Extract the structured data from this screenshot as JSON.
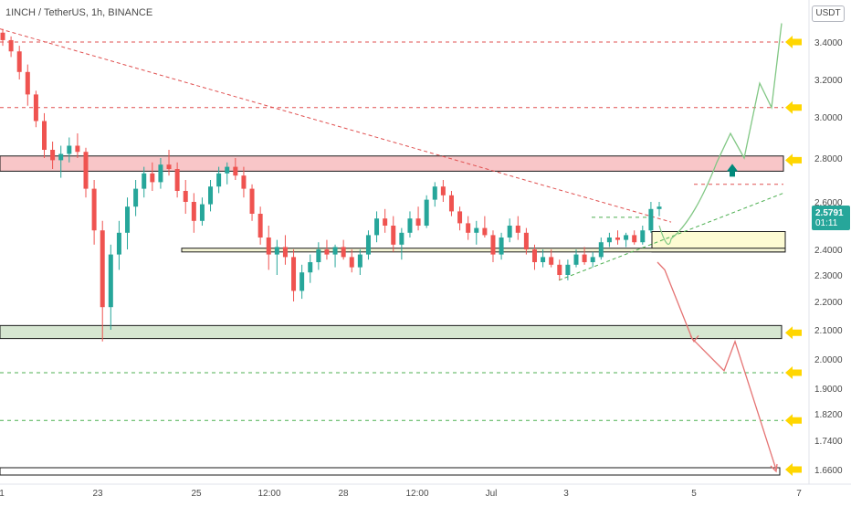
{
  "chart_data": {
    "type": "candlestick",
    "title": "1INCH / TetherUS, 1h, BINANCE",
    "unit_badge": "USDT",
    "current_price": "2.5791",
    "countdown": "01:11",
    "y_ticks": [
      "3.4000",
      "3.2000",
      "3.0000",
      "2.8000",
      "2.6000",
      "2.4000",
      "2.3000",
      "2.2000",
      "2.1000",
      "2.0000",
      "1.9000",
      "1.8200",
      "1.7400",
      "1.6600"
    ],
    "x_ticks": [
      "1",
      "23",
      "25",
      "12:00",
      "28",
      "12:00",
      "Jul",
      "3",
      "5",
      "7"
    ],
    "ohlc": [
      [
        3.45,
        3.47,
        3.38,
        3.41
      ],
      [
        3.41,
        3.43,
        3.32,
        3.35
      ],
      [
        3.35,
        3.38,
        3.2,
        3.24
      ],
      [
        3.24,
        3.28,
        3.06,
        3.12
      ],
      [
        3.12,
        3.14,
        2.95,
        2.98
      ],
      [
        2.98,
        3.02,
        2.8,
        2.84
      ],
      [
        2.84,
        2.88,
        2.75,
        2.79
      ],
      [
        2.79,
        2.86,
        2.71,
        2.82
      ],
      [
        2.82,
        2.9,
        2.78,
        2.86
      ],
      [
        2.86,
        2.92,
        2.8,
        2.83
      ],
      [
        2.83,
        2.85,
        2.62,
        2.66
      ],
      [
        2.66,
        2.7,
        2.42,
        2.48
      ],
      [
        2.48,
        2.52,
        2.06,
        2.18
      ],
      [
        2.18,
        2.42,
        2.1,
        2.38
      ],
      [
        2.38,
        2.52,
        2.32,
        2.47
      ],
      [
        2.47,
        2.62,
        2.4,
        2.58
      ],
      [
        2.58,
        2.7,
        2.54,
        2.66
      ],
      [
        2.66,
        2.76,
        2.62,
        2.73
      ],
      [
        2.73,
        2.78,
        2.65,
        2.69
      ],
      [
        2.69,
        2.8,
        2.66,
        2.77
      ],
      [
        2.77,
        2.84,
        2.72,
        2.75
      ],
      [
        2.75,
        2.78,
        2.62,
        2.65
      ],
      [
        2.65,
        2.7,
        2.55,
        2.6
      ],
      [
        2.6,
        2.64,
        2.47,
        2.52
      ],
      [
        2.52,
        2.62,
        2.5,
        2.59
      ],
      [
        2.59,
        2.7,
        2.56,
        2.67
      ],
      [
        2.67,
        2.76,
        2.64,
        2.73
      ],
      [
        2.73,
        2.78,
        2.68,
        2.76
      ],
      [
        2.76,
        2.8,
        2.7,
        2.72
      ],
      [
        2.72,
        2.76,
        2.62,
        2.66
      ],
      [
        2.66,
        2.68,
        2.52,
        2.55
      ],
      [
        2.55,
        2.58,
        2.42,
        2.45
      ],
      [
        2.45,
        2.5,
        2.32,
        2.38
      ],
      [
        2.38,
        2.44,
        2.3,
        2.41
      ],
      [
        2.41,
        2.46,
        2.34,
        2.37
      ],
      [
        2.37,
        2.4,
        2.2,
        2.24
      ],
      [
        2.24,
        2.34,
        2.21,
        2.31
      ],
      [
        2.31,
        2.38,
        2.27,
        2.35
      ],
      [
        2.35,
        2.43,
        2.32,
        2.4
      ],
      [
        2.4,
        2.44,
        2.36,
        2.38
      ],
      [
        2.38,
        2.42,
        2.33,
        2.41
      ],
      [
        2.41,
        2.44,
        2.36,
        2.37
      ],
      [
        2.37,
        2.4,
        2.31,
        2.33
      ],
      [
        2.33,
        2.4,
        2.3,
        2.38
      ],
      [
        2.38,
        2.48,
        2.36,
        2.46
      ],
      [
        2.46,
        2.56,
        2.43,
        2.53
      ],
      [
        2.53,
        2.57,
        2.47,
        2.5
      ],
      [
        2.5,
        2.54,
        2.39,
        2.42
      ],
      [
        2.42,
        2.49,
        2.36,
        2.47
      ],
      [
        2.47,
        2.56,
        2.45,
        2.53
      ],
      [
        2.53,
        2.58,
        2.48,
        2.5
      ],
      [
        2.5,
        2.63,
        2.49,
        2.61
      ],
      [
        2.61,
        2.69,
        2.58,
        2.67
      ],
      [
        2.67,
        2.7,
        2.6,
        2.63
      ],
      [
        2.63,
        2.65,
        2.54,
        2.56
      ],
      [
        2.56,
        2.58,
        2.48,
        2.51
      ],
      [
        2.51,
        2.54,
        2.44,
        2.47
      ],
      [
        2.47,
        2.52,
        2.42,
        2.49
      ],
      [
        2.49,
        2.54,
        2.45,
        2.46
      ],
      [
        2.46,
        2.48,
        2.35,
        2.38
      ],
      [
        2.38,
        2.47,
        2.36,
        2.45
      ],
      [
        2.45,
        2.53,
        2.43,
        2.5
      ],
      [
        2.5,
        2.54,
        2.44,
        2.47
      ],
      [
        2.47,
        2.49,
        2.38,
        2.4
      ],
      [
        2.4,
        2.42,
        2.32,
        2.35
      ],
      [
        2.35,
        2.4,
        2.33,
        2.37
      ],
      [
        2.37,
        2.4,
        2.33,
        2.34
      ],
      [
        2.34,
        2.36,
        2.28,
        2.3
      ],
      [
        2.3,
        2.36,
        2.28,
        2.34
      ],
      [
        2.34,
        2.4,
        2.33,
        2.38
      ],
      [
        2.38,
        2.41,
        2.34,
        2.35
      ],
      [
        2.35,
        2.39,
        2.33,
        2.37
      ],
      [
        2.37,
        2.45,
        2.36,
        2.43
      ],
      [
        2.43,
        2.47,
        2.41,
        2.45
      ],
      [
        2.45,
        2.48,
        2.42,
        2.44
      ],
      [
        2.44,
        2.47,
        2.41,
        2.46
      ],
      [
        2.46,
        2.48,
        2.42,
        2.43
      ],
      [
        2.43,
        2.5,
        2.42,
        2.48
      ],
      [
        2.48,
        2.6,
        2.47,
        2.57
      ],
      [
        2.57,
        2.6,
        2.54,
        2.58
      ]
    ],
    "horizontal_levels": [
      {
        "price": 3.4,
        "style": "red-dashed",
        "marker": true
      },
      {
        "price": 3.05,
        "style": "red-dashed",
        "marker": true
      },
      {
        "price": 2.79,
        "style": "marker-only",
        "marker": true
      },
      {
        "price": 2.68,
        "style": "red-dashed-short",
        "marker": false
      },
      {
        "price": 2.535,
        "style": "green-dashed-short",
        "marker": false
      },
      {
        "price": 2.09,
        "style": "marker-only",
        "marker": true
      },
      {
        "price": 1.953,
        "style": "green-dashed",
        "marker": true
      },
      {
        "price": 1.8,
        "style": "green-dashed",
        "marker": true
      },
      {
        "price": 1.66,
        "style": "bottom-edge",
        "marker": true
      }
    ],
    "zones": [
      {
        "name": "resistance-zone",
        "top": 2.81,
        "bottom": 2.74,
        "color": "#f8c6c8"
      },
      {
        "name": "mid-zone",
        "top": 2.475,
        "bottom": 2.39,
        "color": "#fdfbd3"
      },
      {
        "name": "middle-line-zone",
        "top": 2.405,
        "bottom": 2.39,
        "color": "#f5f5d5"
      },
      {
        "name": "support-zone",
        "top": 2.115,
        "bottom": 2.07,
        "color": "#d6e6d1"
      },
      {
        "name": "bottom-zone",
        "top": 1.665,
        "bottom": 1.645,
        "color": "#ffffff"
      }
    ],
    "projections": {
      "bullish": [
        [
          2.445,
          "p1"
        ],
        [
          2.62,
          "p2"
        ],
        [
          2.78,
          "p3"
        ],
        [
          2.92,
          "p4"
        ],
        [
          2.8,
          "p5"
        ],
        [
          3.18,
          "p6"
        ],
        [
          3.05,
          "p7"
        ],
        [
          3.5,
          "p8"
        ]
      ],
      "bearish": [
        [
          2.445,
          "p1"
        ],
        [
          2.3,
          "p2"
        ],
        [
          2.42,
          "p3"
        ],
        [
          2.07,
          "p4"
        ],
        [
          1.95,
          "p5"
        ],
        [
          2.06,
          "p6"
        ],
        [
          1.65,
          "p7"
        ]
      ]
    },
    "ylim": [
      1.65,
      3.5
    ]
  }
}
